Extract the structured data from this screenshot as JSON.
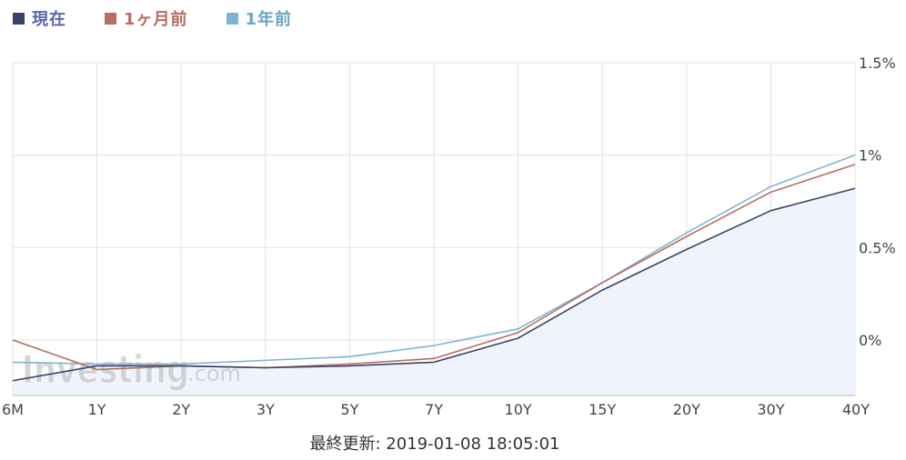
{
  "legend": {
    "items": [
      {
        "label": "現在",
        "color": "#3c4369",
        "text_color": "#5b66a8"
      },
      {
        "label": "1ヶ月前",
        "color": "#b86d62",
        "text_color": "#b56c61"
      },
      {
        "label": "1年前",
        "color": "#7fb5d0",
        "text_color": "#6aa5c4"
      }
    ]
  },
  "watermark": {
    "brand": "Investing",
    "suffix": ".com"
  },
  "footer": {
    "last_updated": "最終更新: 2019-01-08 18:05:01"
  },
  "chart_data": {
    "type": "line",
    "categories": [
      "6M",
      "1Y",
      "2Y",
      "3Y",
      "5Y",
      "7Y",
      "10Y",
      "15Y",
      "20Y",
      "30Y",
      "40Y"
    ],
    "y_ticks": [
      {
        "value": 0,
        "label": "0%"
      },
      {
        "value": 0.5,
        "label": "0.5%"
      },
      {
        "value": 1,
        "label": "1%"
      },
      {
        "value": 1.5,
        "label": "1.5%"
      }
    ],
    "ylim": [
      -0.3,
      1.5
    ],
    "y_axis_position": "right",
    "grid": true,
    "legend_position": "top-left",
    "area_fill_series": 0,
    "area_fill_color": "#eef3fc",
    "series": [
      {
        "name": "現在",
        "color": "#3c4369",
        "values": [
          -0.22,
          -0.14,
          -0.14,
          -0.15,
          -0.14,
          -0.12,
          0.01,
          0.27,
          0.49,
          0.7,
          0.82
        ]
      },
      {
        "name": "1ヶ月前",
        "color": "#b86d62",
        "values": [
          0.0,
          -0.16,
          -0.14,
          -0.15,
          -0.13,
          -0.1,
          0.04,
          0.31,
          0.56,
          0.8,
          0.95
        ]
      },
      {
        "name": "1年前",
        "color": "#7fb5d0",
        "values": [
          -0.12,
          -0.13,
          -0.13,
          -0.11,
          -0.09,
          -0.03,
          0.06,
          0.31,
          0.58,
          0.83,
          1.0
        ]
      }
    ]
  }
}
